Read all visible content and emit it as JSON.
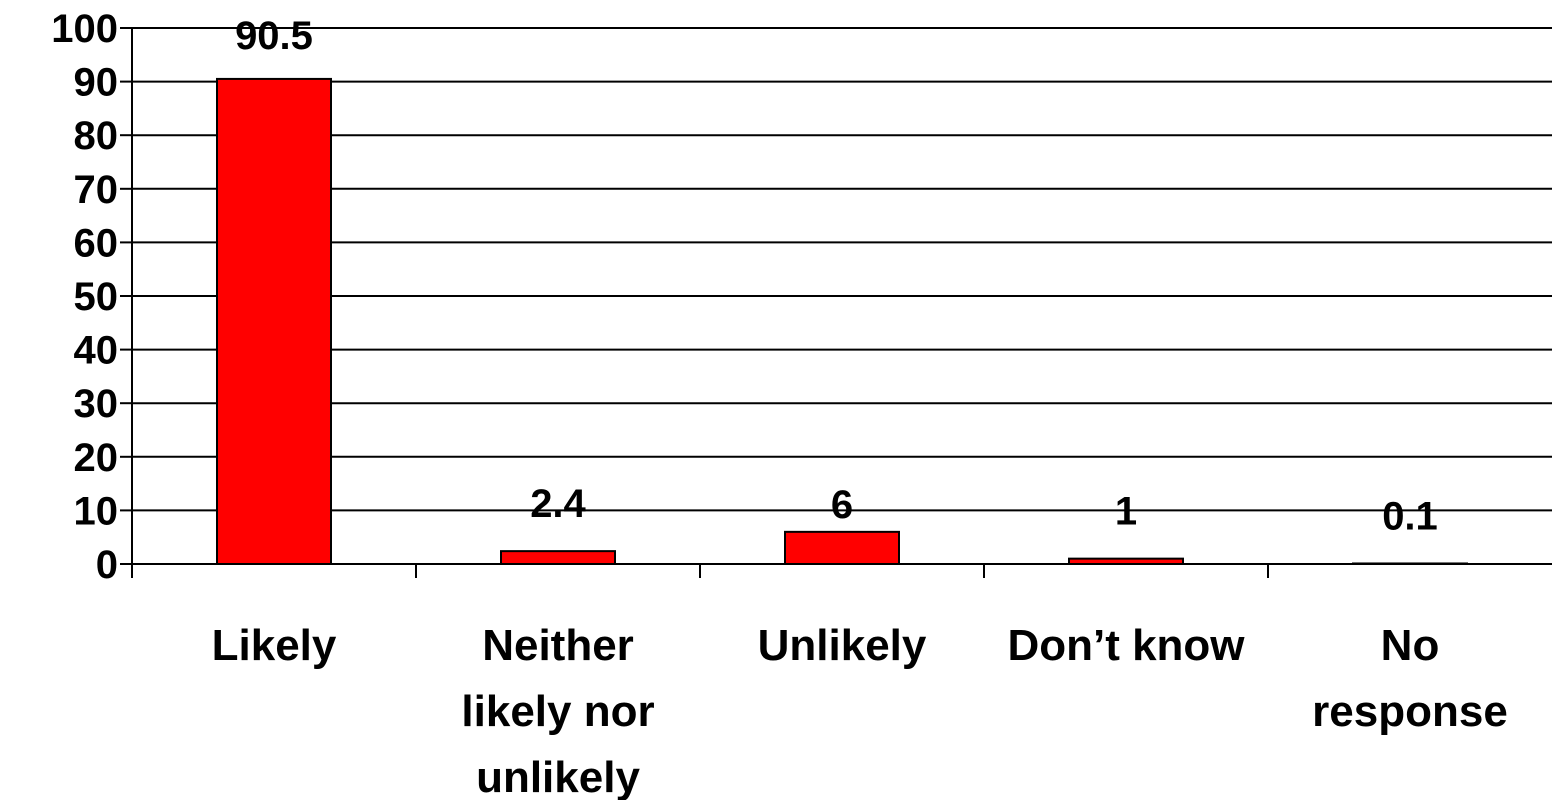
{
  "chart_data": {
    "type": "bar",
    "categories": [
      [
        "Likely"
      ],
      [
        "Neither",
        "likely nor",
        "unlikely"
      ],
      [
        "Unlikely"
      ],
      [
        "Don’t know"
      ],
      [
        "No",
        "response"
      ]
    ],
    "values": [
      90.5,
      2.4,
      6,
      1,
      0.1
    ],
    "data_labels": [
      "90.5",
      "2.4",
      "6",
      "1",
      "0.1"
    ],
    "ylim": [
      0,
      100
    ],
    "yticks": [
      0,
      10,
      20,
      30,
      40,
      50,
      60,
      70,
      80,
      90,
      100
    ],
    "grid": true,
    "legend": "none",
    "xlabel": "",
    "ylabel": "",
    "title": "",
    "colors": {
      "bar_fill": "#ff0000",
      "bar_stroke": "#000000",
      "grid": "#000000",
      "axis": "#000000",
      "text": "#000000"
    }
  }
}
